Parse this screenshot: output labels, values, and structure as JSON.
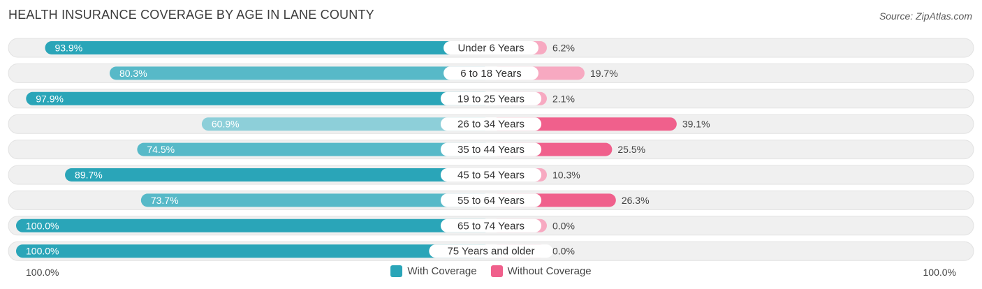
{
  "header": {
    "title": "HEALTH INSURANCE COVERAGE BY AGE IN LANE COUNTY",
    "source": "Source: ZipAtlas.com"
  },
  "colors": {
    "with_coverage": "#2aa5b8",
    "with_coverage_light": "#8dcfd9",
    "without_coverage": "#f0608c",
    "without_coverage_light": "#f7a9c1",
    "track": "#f0f0f0"
  },
  "chart_data": {
    "type": "bar",
    "orientation": "horizontal-diverging",
    "title": "HEALTH INSURANCE COVERAGE BY AGE IN LANE COUNTY",
    "categories": [
      "Under 6 Years",
      "6 to 18 Years",
      "19 to 25 Years",
      "26 to 34 Years",
      "35 to 44 Years",
      "45 to 54 Years",
      "55 to 64 Years",
      "65 to 74 Years",
      "75 Years and older"
    ],
    "series": [
      {
        "name": "With Coverage",
        "values": [
          93.9,
          80.3,
          97.9,
          60.9,
          74.5,
          89.7,
          73.7,
          100.0,
          100.0
        ],
        "labels": [
          "93.9%",
          "80.3%",
          "97.9%",
          "60.9%",
          "74.5%",
          "89.7%",
          "73.7%",
          "100.0%",
          "100.0%"
        ]
      },
      {
        "name": "Without Coverage",
        "values": [
          6.2,
          19.7,
          2.1,
          39.1,
          25.5,
          10.3,
          26.3,
          0.0,
          0.0
        ],
        "labels": [
          "6.2%",
          "19.7%",
          "2.1%",
          "39.1%",
          "25.5%",
          "10.3%",
          "26.3%",
          "0.0%",
          "0.0%"
        ]
      }
    ],
    "xlim": [
      -100,
      100
    ],
    "axis_left_label": "100.0%",
    "axis_right_label": "100.0%",
    "legend_position": "bottom-center"
  },
  "legend": {
    "with_label": "With Coverage",
    "without_label": "Without Coverage"
  }
}
